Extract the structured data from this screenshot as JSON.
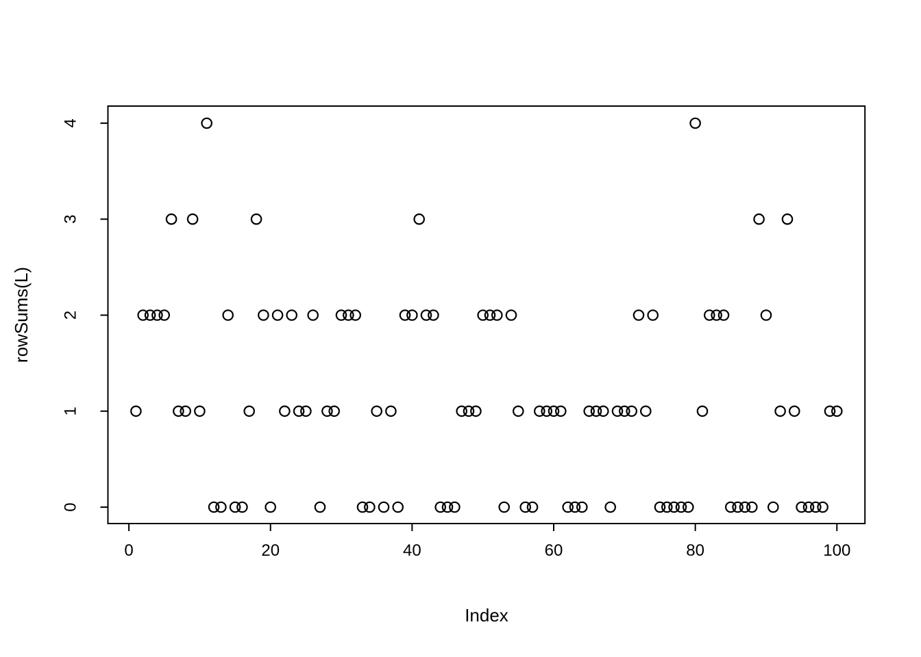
{
  "figure": {
    "background": "#ffffff",
    "foreground": "#000000"
  },
  "chart_data": {
    "type": "scatter",
    "title": "",
    "xlabel": "Index",
    "ylabel": "rowSums(L)",
    "marker": "open-circle",
    "marker_color": "#000000",
    "grid": false,
    "legend": "none",
    "xticks": [
      0,
      20,
      40,
      60,
      80,
      100
    ],
    "yticks": [
      0,
      1,
      2,
      3,
      4
    ],
    "xlim": [
      -2.96,
      103.96
    ],
    "ylim": [
      -0.171,
      4.178
    ],
    "x": [
      1,
      2,
      3,
      4,
      5,
      6,
      7,
      8,
      9,
      10,
      11,
      12,
      13,
      14,
      15,
      16,
      17,
      18,
      19,
      20,
      21,
      22,
      23,
      24,
      25,
      26,
      27,
      28,
      29,
      30,
      31,
      32,
      33,
      34,
      35,
      36,
      37,
      38,
      39,
      40,
      41,
      42,
      43,
      44,
      45,
      46,
      47,
      48,
      49,
      50,
      51,
      52,
      53,
      54,
      55,
      56,
      57,
      58,
      59,
      60,
      61,
      62,
      63,
      64,
      65,
      66,
      67,
      68,
      69,
      70,
      71,
      72,
      73,
      74,
      75,
      76,
      77,
      78,
      79,
      80,
      81,
      82,
      83,
      84,
      85,
      86,
      87,
      88,
      89,
      90,
      91,
      92,
      93,
      94,
      95,
      96,
      97,
      98,
      99,
      100
    ],
    "y": [
      1,
      2,
      2,
      2,
      2,
      3,
      1,
      1,
      3,
      1,
      4,
      0,
      0,
      2,
      0,
      0,
      1,
      3,
      2,
      0,
      2,
      1,
      2,
      1,
      1,
      2,
      0,
      1,
      1,
      2,
      2,
      2,
      0,
      0,
      1,
      0,
      1,
      0,
      2,
      2,
      3,
      2,
      2,
      0,
      0,
      0,
      1,
      1,
      1,
      2,
      2,
      2,
      0,
      2,
      1,
      0,
      0,
      1,
      1,
      1,
      1,
      0,
      0,
      0,
      1,
      1,
      1,
      0,
      1,
      1,
      1,
      2,
      1,
      2,
      0,
      0,
      0,
      0,
      0,
      4,
      1,
      2,
      2,
      2,
      0,
      0,
      0,
      0,
      3,
      2,
      0,
      1,
      3,
      1,
      0,
      0,
      0,
      0,
      1,
      1
    ]
  }
}
